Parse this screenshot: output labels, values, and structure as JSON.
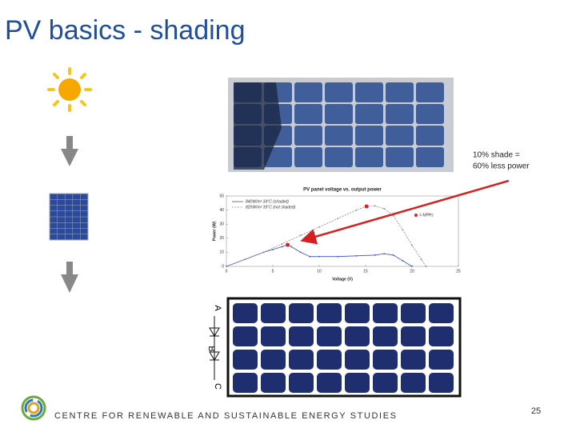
{
  "slide": {
    "title": "PV basics - shading",
    "callout": [
      "10% shade =",
      "60% less power"
    ],
    "footer": "CENTRE FOR RENEWABLE AND SUSTAINABLE ENERGY STUDIES",
    "page_number": 25
  },
  "diagram": {
    "labels": [
      "A",
      "B",
      "C"
    ]
  },
  "chart_data": {
    "type": "line",
    "title": "PV panel voltage vs. output power",
    "x_label": "Voltage (V)",
    "y_label": "Power (W)",
    "xlim": [
      0,
      25
    ],
    "ylim": [
      0,
      50
    ],
    "xticks": [
      0,
      5,
      10,
      15,
      20,
      25
    ],
    "yticks": [
      0,
      10,
      20,
      30,
      40,
      50
    ],
    "grid": false,
    "series": [
      {
        "name": "840W/m² 34°C (shaded)",
        "color": "#3a4fd0",
        "style": "solid",
        "x": [
          0,
          2,
          4,
          5,
          6,
          6.6,
          7,
          8,
          9,
          10,
          12,
          14,
          16,
          17,
          18,
          19,
          20
        ],
        "values": [
          0,
          5,
          10,
          12,
          14,
          15.3,
          14,
          10,
          7,
          7,
          7,
          7.5,
          8,
          9,
          8,
          4,
          0
        ]
      },
      {
        "name": "820W/m² 35°C (not shaded)",
        "color": "#888888",
        "style": "dashed",
        "x": [
          0,
          2,
          4,
          6,
          8,
          10,
          12,
          14,
          15.1,
          16,
          17,
          18,
          19,
          20,
          21,
          21.5
        ],
        "values": [
          0,
          5,
          10,
          16,
          22,
          28,
          34,
          40,
          42.6,
          43,
          41,
          36,
          26,
          15,
          5,
          0
        ]
      },
      {
        "name": "= MPPs",
        "color": "#e02020",
        "style": "points",
        "x": [
          6.6,
          15.1
        ],
        "values": [
          15.3,
          42.6
        ]
      }
    ]
  }
}
